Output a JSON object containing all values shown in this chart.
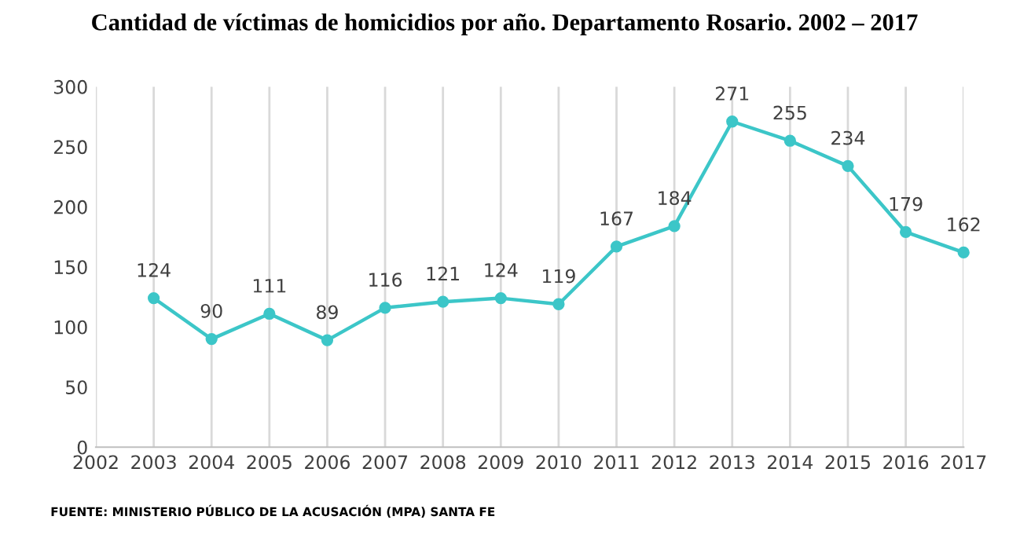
{
  "chart_data": {
    "type": "line",
    "title": "Cantidad de víctimas de homicidios por año. Departamento Rosario. 2002 – 2017",
    "x": [
      2003,
      2004,
      2005,
      2006,
      2007,
      2008,
      2009,
      2010,
      2011,
      2012,
      2013,
      2014,
      2015,
      2016,
      2017
    ],
    "series": [
      {
        "color": "#3cc6c8",
        "values": [
          124,
          90,
          111,
          89,
          116,
          121,
          124,
          119,
          167,
          184,
          271,
          255,
          234,
          179,
          162
        ]
      }
    ],
    "xlim": [
      2002,
      2017
    ],
    "xticks": [
      2002,
      2003,
      2004,
      2005,
      2006,
      2007,
      2008,
      2009,
      2010,
      2011,
      2012,
      2013,
      2014,
      2015,
      2016,
      2017
    ],
    "ylim": [
      0,
      300
    ],
    "yticks": [
      0,
      50,
      100,
      150,
      200,
      250,
      300
    ],
    "grid": "x",
    "marker": "circle",
    "line_style": "solid",
    "data_labels": true,
    "annotations": [
      "FUENTE: MINISTERIO PÚBLICO DE LA ACUSACIÓN (MPA) SANTA FE"
    ]
  }
}
